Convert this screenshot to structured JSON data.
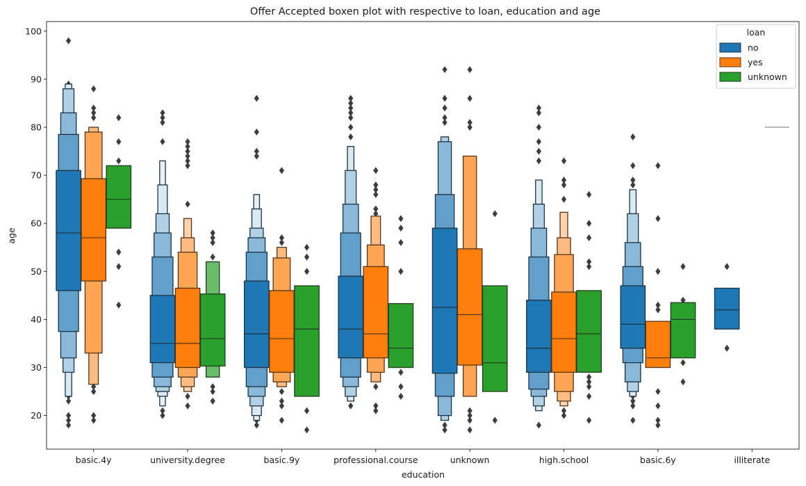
{
  "chart_data": {
    "type": "boxen",
    "title": "Offer Accepted boxen plot with respective to loan, education and age",
    "xlabel": "education",
    "ylabel": "age",
    "ylim": [
      13,
      102
    ],
    "yticks": [
      20,
      30,
      40,
      50,
      60,
      70,
      80,
      90,
      100
    ],
    "categories": [
      "basic.4y",
      "university.degree",
      "basic.9y",
      "professional.course",
      "unknown",
      "high.school",
      "basic.6y",
      "illiterate"
    ],
    "legend": {
      "title": "loan",
      "placement": "top-right"
    },
    "series": [
      {
        "name": "no",
        "color": "#1f77b4",
        "groups": [
          {
            "boxes": [
              [
                46,
                71
              ],
              [
                37.5,
                78.5
              ],
              [
                32,
                83
              ],
              [
                29,
                88
              ],
              [
                24,
                89
              ]
            ],
            "median": 58,
            "outliers": [
              18,
              19,
              20,
              23,
              24,
              89,
              98
            ]
          },
          {
            "boxes": [
              [
                31,
                45
              ],
              [
                28,
                53
              ],
              [
                26,
                58
              ],
              [
                25,
                62
              ],
              [
                24,
                68
              ],
              [
                22,
                73
              ]
            ],
            "median": 35,
            "outliers": [
              20,
              21,
              77,
              81,
              82,
              83
            ]
          },
          {
            "boxes": [
              [
                30,
                48
              ],
              [
                26,
                54
              ],
              [
                24,
                57
              ],
              [
                22,
                59
              ],
              [
                20,
                63
              ],
              [
                19,
                66
              ]
            ],
            "median": 37,
            "outliers": [
              18,
              19,
              74,
              75,
              79,
              86
            ]
          },
          {
            "boxes": [
              [
                32,
                49
              ],
              [
                28,
                58
              ],
              [
                26,
                64
              ],
              [
                24,
                71
              ],
              [
                23,
                76
              ]
            ],
            "median": 38,
            "outliers": [
              22,
              78,
              80,
              82,
              83,
              84,
              85,
              86
            ]
          },
          {
            "boxes": [
              [
                28.8,
                59
              ],
              [
                24,
                66
              ],
              [
                20,
                77
              ],
              [
                19,
                78
              ]
            ],
            "median": 42.5,
            "outliers": [
              17,
              18,
              81,
              82,
              84,
              86,
              92
            ]
          },
          {
            "boxes": [
              [
                29,
                44
              ],
              [
                25.5,
                53
              ],
              [
                24,
                59
              ],
              [
                22,
                64
              ],
              [
                21,
                69
              ]
            ],
            "median": 34,
            "outliers": [
              18,
              73,
              75,
              77,
              80,
              83,
              84
            ]
          },
          {
            "boxes": [
              [
                34,
                47
              ],
              [
                31,
                51
              ],
              [
                27,
                56
              ],
              [
                25,
                62
              ],
              [
                24,
                67
              ]
            ],
            "median": 39,
            "outliers": [
              19,
              22,
              23,
              24,
              68,
              69,
              72,
              78
            ]
          },
          {
            "boxes": [
              [
                38,
                46.5
              ]
            ],
            "median": 42,
            "outliers": [
              34,
              51
            ]
          }
        ]
      },
      {
        "name": "yes",
        "color": "#ff7f0e",
        "groups": [
          {
            "boxes": [
              [
                48,
                69.3
              ],
              [
                33,
                79
              ],
              [
                26.5,
                80
              ]
            ],
            "median": 57,
            "outliers": [
              19,
              20,
              25,
              26,
              82,
              83,
              84,
              88
            ]
          },
          {
            "boxes": [
              [
                30,
                46.5
              ],
              [
                28,
                54
              ],
              [
                26,
                57
              ],
              [
                25,
                61
              ]
            ],
            "median": 35,
            "outliers": [
              22,
              24,
              64,
              72,
              73,
              74,
              75,
              76,
              77
            ]
          },
          {
            "boxes": [
              [
                29,
                46
              ],
              [
                27,
                52.8
              ],
              [
                26,
                55
              ]
            ],
            "median": 36,
            "outliers": [
              19,
              22,
              23,
              25,
              56,
              57,
              71
            ]
          },
          {
            "boxes": [
              [
                32,
                51
              ],
              [
                29,
                55.5
              ],
              [
                27,
                61.5
              ]
            ],
            "median": 37,
            "outliers": [
              21,
              22,
              26,
              62,
              63,
              66,
              67,
              68,
              71
            ]
          },
          {
            "boxes": [
              [
                30.5,
                54.7
              ],
              [
                24,
                74
              ]
            ],
            "median": 41,
            "outliers": [
              17,
              19,
              20,
              21,
              80,
              81,
              86,
              92
            ]
          },
          {
            "boxes": [
              [
                29,
                45.7
              ],
              [
                25,
                53.5
              ],
              [
                23,
                57
              ],
              [
                22,
                62.3
              ]
            ],
            "median": 36,
            "outliers": [
              20,
              21,
              65,
              68,
              69,
              73
            ]
          },
          {
            "boxes": [
              [
                30,
                39.6
              ]
            ],
            "median": 32,
            "outliers": [
              18,
              19,
              22,
              25,
              42,
              43,
              50,
              61,
              72
            ]
          },
          null
        ]
      },
      {
        "name": "unknown",
        "color": "#2ca02c",
        "groups": [
          {
            "boxes": [
              [
                59,
                72
              ]
            ],
            "median": 65,
            "outliers": [
              43,
              51,
              54,
              73,
              77,
              82
            ]
          },
          {
            "boxes": [
              [
                30.3,
                45.3
              ],
              [
                28,
                52
              ]
            ],
            "median": 36,
            "outliers": [
              23,
              25,
              26,
              53,
              56,
              57,
              58
            ]
          },
          {
            "boxes": [
              [
                24,
                47
              ]
            ],
            "median": 38,
            "outliers": [
              17,
              21,
              50,
              53,
              55
            ]
          },
          {
            "boxes": [
              [
                30,
                43.3
              ]
            ],
            "median": 34,
            "outliers": [
              24,
              26,
              29,
              50,
              56,
              59,
              61
            ]
          },
          {
            "boxes": [
              [
                25,
                47
              ]
            ],
            "median": 31,
            "outliers": [
              19,
              62
            ]
          },
          {
            "boxes": [
              [
                29,
                46
              ]
            ],
            "median": 37,
            "outliers": [
              19,
              24,
              26,
              27,
              28,
              51,
              52,
              57,
              60,
              66
            ]
          },
          {
            "boxes": [
              [
                32,
                43.5
              ]
            ],
            "median": 40,
            "outliers": [
              27,
              31,
              44,
              51
            ]
          },
          {
            "boxes": [
              [
                80,
                80
              ]
            ],
            "median": 80,
            "outliers": []
          }
        ]
      }
    ]
  }
}
